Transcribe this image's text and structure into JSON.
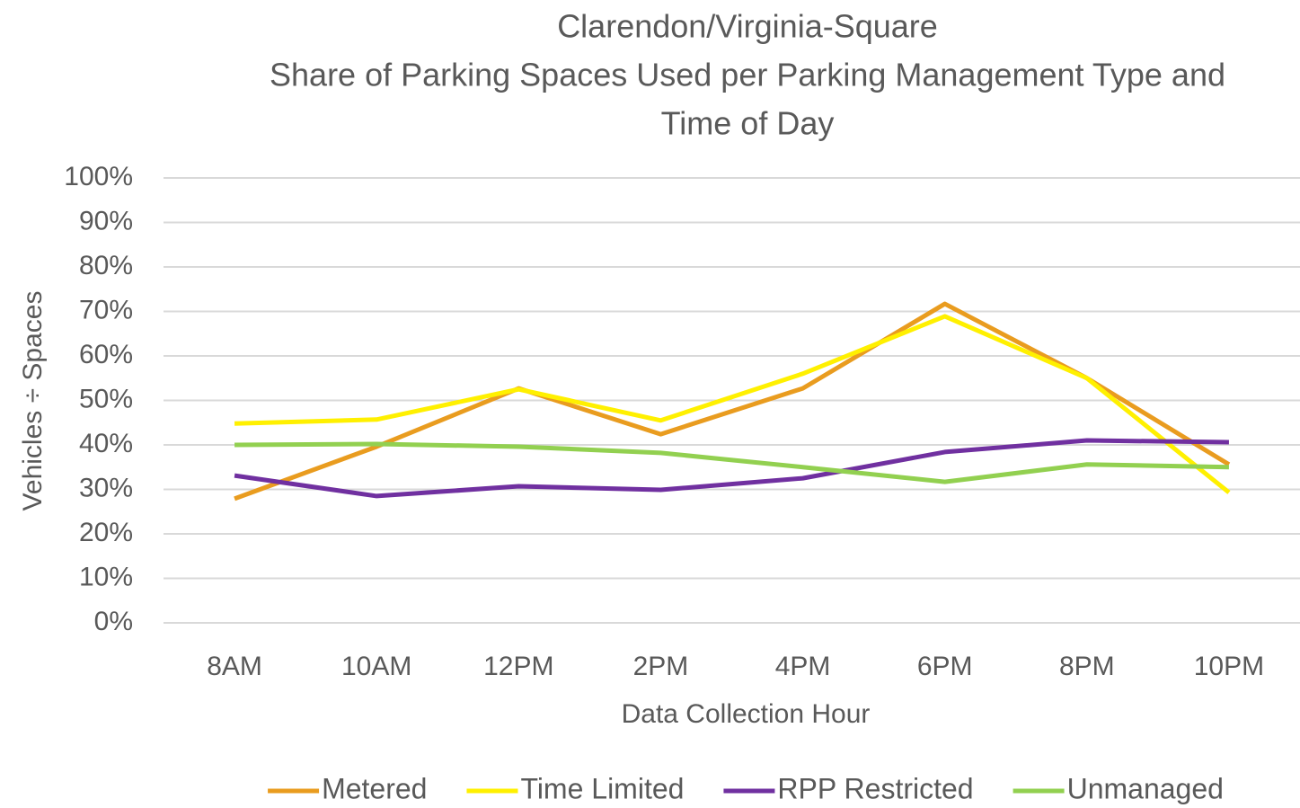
{
  "chart_data": {
    "type": "line",
    "title": [
      "Clarendon/Virginia-Square",
      "Share of Parking Spaces Used per Parking Management Type and",
      "Time of Day"
    ],
    "x_label": "Data Collection Hour",
    "y_label": "Vehicles ÷ Spaces",
    "categories": [
      "8AM",
      "10AM",
      "12PM",
      "2PM",
      "4PM",
      "6PM",
      "8PM",
      "10PM"
    ],
    "series": [
      {
        "name": "Metered",
        "color": "#e99c1f",
        "values": [
          27.9,
          39.6,
          52.7,
          42.4,
          52.7,
          71.7,
          55,
          35.6
        ]
      },
      {
        "name": "Time Limited",
        "color": "#fff000",
        "values": [
          44.8,
          45.7,
          52.5,
          45.5,
          56,
          68.9,
          55,
          29.3
        ]
      },
      {
        "name": "RPP Restricted",
        "color": "#7030a0",
        "values": [
          33.1,
          28.5,
          30.7,
          29.9,
          32.5,
          38.4,
          41,
          40.6
        ]
      },
      {
        "name": "Unmanaged",
        "color": "#92d050",
        "values": [
          40,
          40.2,
          39.6,
          38.2,
          35,
          31.7,
          35.6,
          35
        ]
      }
    ],
    "ylim": [
      0,
      100
    ],
    "yticks": [
      {
        "value": 0,
        "label": "0%"
      },
      {
        "value": 10,
        "label": "10%"
      },
      {
        "value": 20,
        "label": "20%"
      },
      {
        "value": 30,
        "label": "30%"
      },
      {
        "value": 40,
        "label": "40%"
      },
      {
        "value": 50,
        "label": "50%"
      },
      {
        "value": 60,
        "label": "60%"
      },
      {
        "value": 70,
        "label": "70%"
      },
      {
        "value": 80,
        "label": "80%"
      },
      {
        "value": 90,
        "label": "90%"
      },
      {
        "value": 100,
        "label": "100%"
      }
    ],
    "grid": true,
    "legend": "bottom"
  }
}
